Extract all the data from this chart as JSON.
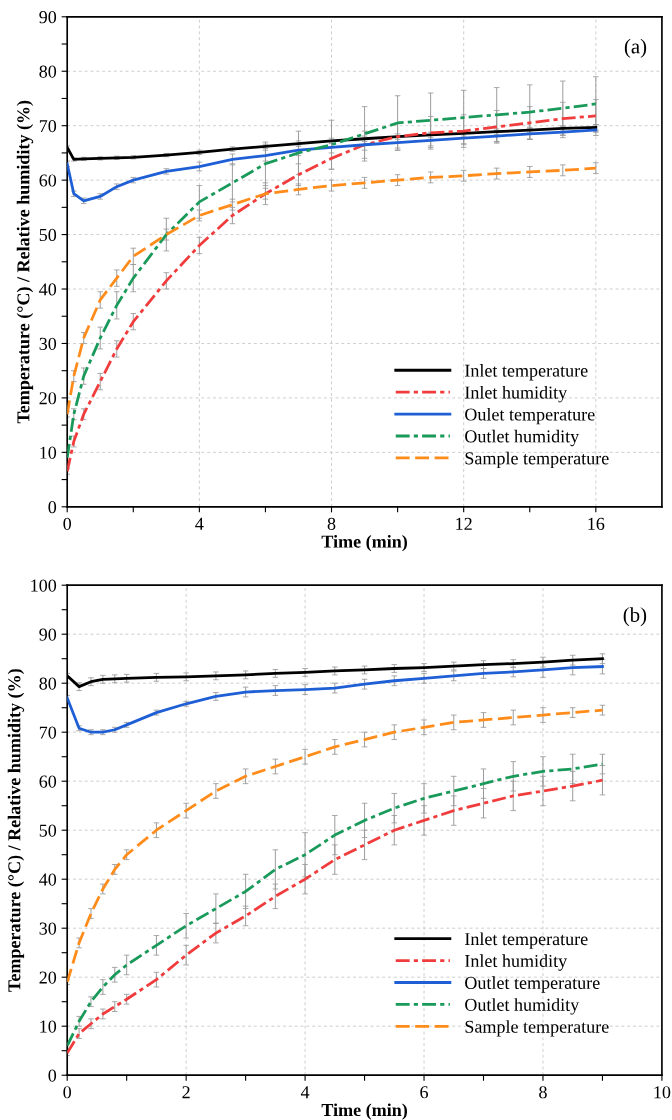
{
  "chart_data": [
    {
      "type": "line",
      "xlabel": "Time (min)",
      "ylabel": "Temperature (°C) / Relative humidity (%)",
      "annotations": [
        "(a)"
      ],
      "x": [
        0,
        0.2,
        0.5,
        1,
        1.5,
        2,
        3,
        4,
        5,
        6,
        7,
        8,
        9,
        10,
        11,
        12,
        13,
        14,
        15,
        16
      ],
      "series": [
        {
          "name": "Inlet temperature",
          "color": "#000000",
          "line_style": "solid",
          "values": [
            66,
            63.8,
            63.9,
            64,
            64.1,
            64.2,
            64.6,
            65.1,
            65.7,
            66.2,
            66.7,
            67.2,
            67.6,
            68,
            68.3,
            68.6,
            68.9,
            69.2,
            69.5,
            69.7
          ],
          "errors": [
            0.3,
            0.3,
            0.3,
            0.3,
            0.3,
            0.3,
            0.3,
            0.4,
            0.4,
            0.4,
            0.5,
            0.5,
            0.5,
            0.5,
            0.5,
            0.5,
            0.5,
            0.5,
            0.5,
            0.5
          ]
        },
        {
          "name": "Inlet humidity",
          "color": "#f03c3c",
          "line_style": "dashdot",
          "values": [
            6.5,
            12,
            17,
            23,
            29,
            34,
            41.5,
            48,
            53.5,
            57.5,
            61,
            64,
            66.5,
            68,
            68.7,
            69,
            69.8,
            70.5,
            71.3,
            71.8
          ],
          "errors": [
            0.5,
            1,
            1,
            1.5,
            1.5,
            1.5,
            1.5,
            1.5,
            1.5,
            2,
            2,
            2,
            2.5,
            2.5,
            3,
            3,
            3,
            3,
            3,
            3
          ]
        },
        {
          "name": "Oulet temperature",
          "color": "#1f5fd6",
          "line_style": "solid",
          "values": [
            63,
            57.5,
            56.2,
            57,
            58.8,
            60,
            61.6,
            62.5,
            63.8,
            64.5,
            65.5,
            66,
            66.5,
            66.9,
            67.3,
            67.7,
            68.1,
            68.5,
            68.8,
            69.2
          ],
          "errors": [
            0.5,
            0.5,
            0.5,
            0.5,
            0.5,
            0.5,
            0.5,
            0.8,
            1,
            1,
            1,
            1,
            1,
            1,
            1,
            1,
            1,
            1,
            1,
            1
          ]
        },
        {
          "name": "Outlet humidity",
          "color": "#1a9a5a",
          "line_style": "dashdot",
          "values": [
            9,
            17,
            24,
            31,
            37,
            42,
            50,
            56,
            59.5,
            63,
            65,
            66.5,
            68.5,
            70.5,
            71,
            71.5,
            72,
            72.5,
            73.2,
            74
          ],
          "errors": [
            1,
            1,
            1.5,
            2,
            2.5,
            2.5,
            3,
            3,
            3.5,
            4,
            4,
            4.5,
            5,
            5,
            5,
            5,
            5,
            5,
            5,
            5
          ]
        },
        {
          "name": "Sample temperature",
          "color": "#ff8c1a",
          "line_style": "dashed",
          "values": [
            17,
            24,
            31,
            38,
            42,
            46,
            50,
            53.5,
            55.5,
            57.5,
            58.3,
            59,
            59.5,
            60,
            60.5,
            60.8,
            61.2,
            61.5,
            61.8,
            62.2
          ],
          "errors": [
            0.5,
            1,
            1,
            1.5,
            1.5,
            1.5,
            1,
            1,
            1,
            1,
            1,
            1,
            1,
            1,
            1,
            1,
            1,
            1,
            1,
            1
          ]
        }
      ],
      "xlim": [
        0,
        18
      ],
      "ylim": [
        0,
        90
      ],
      "xticks": [
        0,
        {
          "value": 2,
          "label": null
        },
        4,
        {
          "value": 6,
          "label": null
        },
        8,
        {
          "value": 10,
          "label": null
        },
        12,
        {
          "value": 14,
          "label": null
        },
        16
      ],
      "yticks": [
        0,
        {
          "value": 5,
          "label": null
        },
        10,
        {
          "value": 15,
          "label": null
        },
        20,
        {
          "value": 25,
          "label": null
        },
        30,
        {
          "value": 35,
          "label": null
        },
        40,
        {
          "value": 45,
          "label": null
        },
        50,
        {
          "value": 55,
          "label": null
        },
        60,
        {
          "value": 65,
          "label": null
        },
        70,
        {
          "value": 75,
          "label": null
        },
        80,
        {
          "value": 85,
          "label": null
        },
        90
      ],
      "grid": true,
      "legend": "bottom right"
    },
    {
      "type": "line",
      "xlabel": "Time (min)",
      "ylabel": "Temperature (°C) / Relative humidity (%)",
      "annotations": [
        "(b)"
      ],
      "x": [
        0,
        0.2,
        0.4,
        0.6,
        0.8,
        1,
        1.5,
        2,
        2.5,
        3,
        3.5,
        4,
        4.5,
        5,
        5.5,
        6,
        6.5,
        7,
        7.5,
        8,
        8.5,
        9
      ],
      "series": [
        {
          "name": "Inlet temperature",
          "color": "#000000",
          "line_style": "solid",
          "values": [
            81.5,
            79.3,
            80.3,
            80.8,
            80.9,
            81,
            81.2,
            81.3,
            81.5,
            81.7,
            82,
            82.2,
            82.5,
            82.7,
            83,
            83.2,
            83.5,
            83.8,
            84,
            84.3,
            84.7,
            85
          ],
          "errors": [
            0.5,
            0.8,
            0.8,
            0.8,
            0.8,
            0.8,
            0.8,
            0.8,
            0.8,
            0.8,
            0.8,
            0.8,
            0.8,
            0.8,
            0.8,
            0.8,
            0.8,
            0.8,
            0.8,
            1,
            1,
            1
          ]
        },
        {
          "name": "Inlet humidity",
          "color": "#f03c3c",
          "line_style": "dashdot",
          "values": [
            4.5,
            8.5,
            10.5,
            12.5,
            14,
            15.5,
            19.5,
            24.5,
            29,
            32.5,
            36.5,
            40,
            44,
            47,
            50,
            52,
            54,
            55.5,
            57,
            58,
            59,
            60.2
          ],
          "errors": [
            0.5,
            1,
            1,
            1,
            1,
            1,
            1.5,
            2,
            2,
            2,
            2.5,
            3,
            3,
            3,
            3,
            3,
            3,
            3,
            3,
            3,
            3,
            3
          ]
        },
        {
          "name": "Outlet temperature",
          "color": "#1f5fd6",
          "line_style": "solid",
          "values": [
            77,
            70.8,
            70,
            70,
            70.5,
            71.5,
            74,
            75.8,
            77.3,
            78.2,
            78.5,
            78.7,
            79,
            79.8,
            80.5,
            81,
            81.5,
            82,
            82.3,
            82.7,
            83.2,
            83.4
          ],
          "errors": [
            0.5,
            0.5,
            0.5,
            0.5,
            0.5,
            0.5,
            0.5,
            0.5,
            0.8,
            1,
            1,
            1,
            1,
            1,
            1,
            1,
            1,
            1,
            1,
            1.5,
            1.5,
            1.5
          ]
        },
        {
          "name": "Outlet humidity",
          "color": "#1a9a5a",
          "line_style": "dashdot",
          "values": [
            6,
            11,
            15,
            18,
            20.5,
            22.5,
            26.5,
            30.5,
            34,
            37.5,
            42,
            45,
            49,
            52,
            54.5,
            56.5,
            58,
            59.5,
            61,
            62,
            62.5,
            63.5
          ],
          "errors": [
            0.5,
            1,
            1,
            1.5,
            1.5,
            2,
            2,
            2.5,
            3,
            3.5,
            4,
            4.5,
            4,
            3.5,
            3,
            3,
            3,
            3,
            3,
            3,
            3,
            2
          ]
        },
        {
          "name": "Sample temperature",
          "color": "#ff8c1a",
          "line_style": "dashed",
          "values": [
            19,
            27,
            33,
            38,
            42,
            45,
            50,
            54,
            58,
            61,
            63,
            65,
            67,
            68.5,
            70,
            71,
            72,
            72.5,
            73,
            73.5,
            74,
            74.5
          ],
          "errors": [
            0.5,
            1,
            1,
            1,
            1,
            1,
            1.5,
            1.5,
            1.5,
            1.5,
            1.5,
            1.5,
            1.5,
            1.5,
            1.5,
            1.5,
            1.5,
            1.5,
            1.5,
            1.5,
            1,
            1
          ]
        }
      ],
      "xlim": [
        0,
        10
      ],
      "ylim": [
        0,
        100
      ],
      "xticks": [
        0,
        {
          "value": 1,
          "label": null
        },
        2,
        {
          "value": 3,
          "label": null
        },
        4,
        {
          "value": 5,
          "label": null
        },
        6,
        {
          "value": 7,
          "label": null
        },
        8,
        {
          "value": 9,
          "label": null
        },
        10
      ],
      "yticks": [
        0,
        {
          "value": 5,
          "label": null
        },
        10,
        {
          "value": 15,
          "label": null
        },
        20,
        {
          "value": 25,
          "label": null
        },
        30,
        {
          "value": 35,
          "label": null
        },
        40,
        {
          "value": 45,
          "label": null
        },
        50,
        {
          "value": 55,
          "label": null
        },
        60,
        {
          "value": 65,
          "label": null
        },
        70,
        {
          "value": 75,
          "label": null
        },
        80,
        {
          "value": 85,
          "label": null
        },
        90,
        {
          "value": 95,
          "label": null
        },
        100
      ],
      "grid": true,
      "legend": "bottom right"
    }
  ]
}
